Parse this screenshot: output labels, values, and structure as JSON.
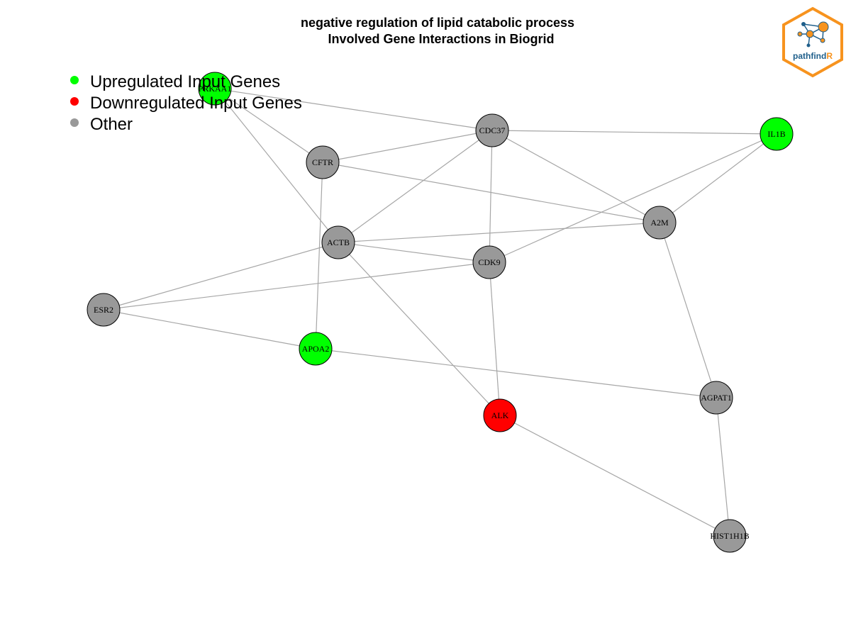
{
  "title": {
    "line1": "negative regulation of lipid catabolic process",
    "line2": "Involved Gene Interactions in Biogrid"
  },
  "colors": {
    "up": "#00ff00",
    "down": "#ff0000",
    "other": "#999999",
    "edge": "#a6a6a6",
    "logo_orange": "#f7931e",
    "logo_blue": "#1f5f8b"
  },
  "legend": [
    {
      "label": "Upregulated Input Genes",
      "status": "up"
    },
    {
      "label": "Downregulated Input Genes",
      "status": "down"
    },
    {
      "label": "Other",
      "status": "other"
    }
  ],
  "logo": {
    "text_main": "pathfind",
    "text_accent": "R",
    "icon": "network-hexagon-logo"
  },
  "genes": [
    {
      "id": "PRKAA1",
      "status": "up"
    },
    {
      "id": "CDC37",
      "status": "other"
    },
    {
      "id": "IL1B",
      "status": "up"
    },
    {
      "id": "CFTR",
      "status": "other"
    },
    {
      "id": "A2M",
      "status": "other"
    },
    {
      "id": "ACTB",
      "status": "other"
    },
    {
      "id": "CDK9",
      "status": "other"
    },
    {
      "id": "ESR2",
      "status": "other"
    },
    {
      "id": "APOA2",
      "status": "up"
    },
    {
      "id": "AGPAT1",
      "status": "other"
    },
    {
      "id": "ALK",
      "status": "down"
    },
    {
      "id": "HIST1H1B",
      "status": "other"
    }
  ],
  "interactions": [
    [
      "PRKAA1",
      "CDC37"
    ],
    [
      "PRKAA1",
      "CFTR"
    ],
    [
      "PRKAA1",
      "ACTB"
    ],
    [
      "CDC37",
      "IL1B"
    ],
    [
      "CDC37",
      "CFTR"
    ],
    [
      "CDC37",
      "ACTB"
    ],
    [
      "CDC37",
      "CDK9"
    ],
    [
      "CDC37",
      "A2M"
    ],
    [
      "IL1B",
      "A2M"
    ],
    [
      "IL1B",
      "CDK9"
    ],
    [
      "CFTR",
      "A2M"
    ],
    [
      "CFTR",
      "APOA2"
    ],
    [
      "ACTB",
      "A2M"
    ],
    [
      "ACTB",
      "CDK9"
    ],
    [
      "ACTB",
      "ESR2"
    ],
    [
      "ACTB",
      "ALK"
    ],
    [
      "CDK9",
      "ESR2"
    ],
    [
      "CDK9",
      "ALK"
    ],
    [
      "ESR2",
      "APOA2"
    ],
    [
      "APOA2",
      "AGPAT1"
    ],
    [
      "A2M",
      "AGPAT1"
    ],
    [
      "AGPAT1",
      "HIST1H1B"
    ],
    [
      "ALK",
      "HIST1H1B"
    ]
  ]
}
